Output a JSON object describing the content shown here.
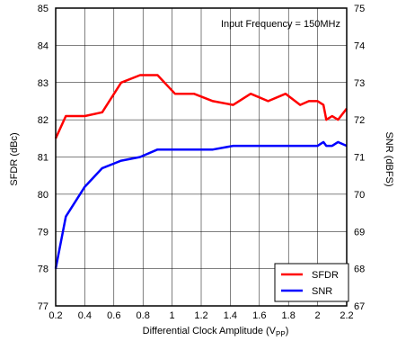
{
  "chart_data": {
    "type": "line",
    "annotation": "Input Frequency = 150MHz",
    "xlabel": "Differential Clock Amplitude (V",
    "xlabel_sub": "PP",
    "xlabel_close": ")",
    "ylabel_left": "SFDR (dBc)",
    "ylabel_right": "SNR (dBFS)",
    "xlim": [
      0.2,
      2.2
    ],
    "ylim_left": [
      77,
      85
    ],
    "ylim_right": [
      67,
      75
    ],
    "x_ticks": [
      "0.2",
      "0.4",
      "0.6",
      "0.8",
      "1",
      "1.2",
      "1.4",
      "1.6",
      "1.8",
      "2",
      "2.2"
    ],
    "y_ticks_left": [
      "77",
      "78",
      "79",
      "80",
      "81",
      "82",
      "83",
      "84",
      "85"
    ],
    "y_ticks_right": [
      "67",
      "68",
      "69",
      "70",
      "71",
      "72",
      "73",
      "74",
      "75"
    ],
    "grid": true,
    "legend_position": "bottom-right",
    "series": [
      {
        "name": "SFDR",
        "axis": "left",
        "color": "#ff0000",
        "x": [
          0.2,
          0.27,
          0.4,
          0.52,
          0.65,
          0.78,
          0.9,
          1.02,
          1.15,
          1.28,
          1.42,
          1.54,
          1.66,
          1.78,
          1.88,
          1.94,
          2.0,
          2.04,
          2.06,
          2.1,
          2.14,
          2.2
        ],
        "y": [
          81.5,
          82.1,
          82.1,
          82.2,
          83.0,
          83.2,
          83.2,
          82.7,
          82.7,
          82.5,
          82.4,
          82.7,
          82.5,
          82.7,
          82.4,
          82.5,
          82.5,
          82.4,
          82.0,
          82.1,
          82.0,
          82.3
        ]
      },
      {
        "name": "SNR",
        "axis": "right",
        "color": "#0000ff",
        "x": [
          0.2,
          0.27,
          0.4,
          0.52,
          0.65,
          0.78,
          0.9,
          1.02,
          1.15,
          1.28,
          1.42,
          1.54,
          1.66,
          1.78,
          1.88,
          1.94,
          2.0,
          2.04,
          2.06,
          2.1,
          2.14,
          2.2
        ],
        "y": [
          68.0,
          69.4,
          70.2,
          70.7,
          70.9,
          71.0,
          71.2,
          71.2,
          71.2,
          71.2,
          71.3,
          71.3,
          71.3,
          71.3,
          71.3,
          71.3,
          71.3,
          71.4,
          71.3,
          71.3,
          71.4,
          71.3
        ]
      }
    ]
  }
}
